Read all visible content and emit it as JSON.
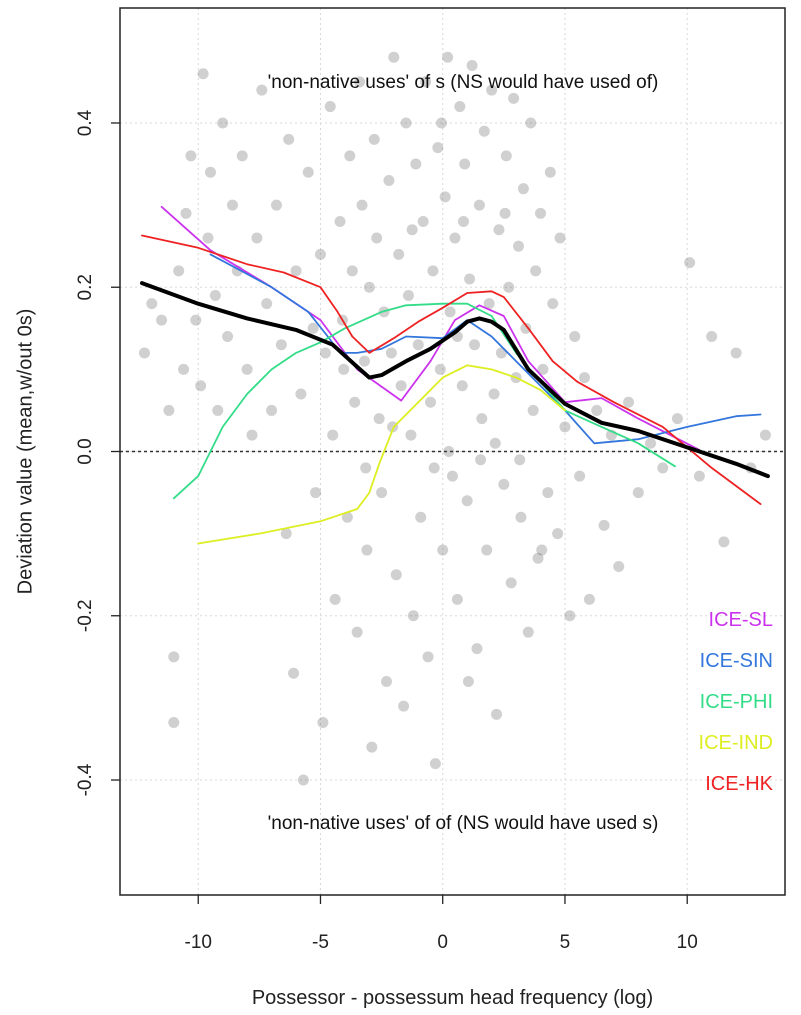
{
  "chart_data": {
    "type": "scatter",
    "xlabel": "Possessor - possessum head frequency (log)",
    "ylabel": "Deviation value (mean,w/out 0s)",
    "xlim": [
      -13.2,
      14.0
    ],
    "ylim": [
      -0.54,
      0.54
    ],
    "xticks": [
      -10,
      -5,
      0,
      5,
      10
    ],
    "xtick_labels": [
      "-10",
      "-5",
      "0",
      "5",
      "10"
    ],
    "yticks": [
      -0.4,
      -0.2,
      0.0,
      0.2,
      0.4
    ],
    "ytick_labels": [
      "-0.4",
      "-0.2",
      "0.0",
      "0.2",
      "0.4"
    ],
    "grid": true,
    "reference_line_y": 0.0,
    "annotations": {
      "top": "'non-native uses' of s (NS would have used of)",
      "bottom": "'non-native uses' of of (NS would have used s)"
    },
    "legend_position": "bottom-right",
    "series": [
      {
        "name": "ICE-SL",
        "color": "#cc33ee",
        "x": [
          -11.5,
          -9.5,
          -7,
          -5,
          -3.5,
          -1.7,
          -0.5,
          0.5,
          1.5,
          2.5,
          3.5,
          5,
          6.5,
          8,
          10.5
        ],
        "y": [
          0.298,
          0.245,
          0.2,
          0.16,
          0.1,
          0.062,
          0.11,
          0.16,
          0.178,
          0.165,
          0.11,
          0.06,
          0.065,
          0.04,
          0.002
        ]
      },
      {
        "name": "ICE-SIN",
        "color": "#3377dd",
        "x": [
          -9.5,
          -7,
          -5.5,
          -4.7,
          -4.2,
          -3.5,
          -2.5,
          -1.5,
          0,
          1,
          2,
          3,
          4,
          5,
          6.2,
          8,
          10,
          12,
          13
        ],
        "y": [
          0.24,
          0.2,
          0.17,
          0.14,
          0.12,
          0.12,
          0.125,
          0.14,
          0.138,
          0.16,
          0.14,
          0.11,
          0.08,
          0.05,
          0.01,
          0.015,
          0.03,
          0.043,
          0.045
        ]
      },
      {
        "name": "ICE-PHI",
        "color": "#33dd88",
        "x": [
          -11,
          -10,
          -9,
          -8,
          -7,
          -6,
          -5,
          -4,
          -2.5,
          -1.5,
          0,
          1,
          2,
          3,
          4,
          5,
          6.5,
          8,
          9.5
        ],
        "y": [
          -0.057,
          -0.03,
          0.03,
          0.07,
          0.1,
          0.12,
          0.133,
          0.15,
          0.17,
          0.178,
          0.18,
          0.18,
          0.165,
          0.12,
          0.085,
          0.05,
          0.03,
          0.01,
          -0.018
        ]
      },
      {
        "name": "ICE-IND",
        "color": "#ddee22",
        "x": [
          -10,
          -7.5,
          -5,
          -3.5,
          -3,
          -2.6,
          -2,
          -1,
          0,
          1,
          2,
          3,
          4,
          5
        ],
        "y": [
          -0.112,
          -0.1,
          -0.085,
          -0.07,
          -0.05,
          -0.015,
          0.03,
          0.06,
          0.09,
          0.105,
          0.1,
          0.09,
          0.075,
          0.05
        ]
      },
      {
        "name": "ICE-HK",
        "color": "#ee2222",
        "x": [
          -12.3,
          -10,
          -8,
          -6.5,
          -5,
          -4.3,
          -3.7,
          -3,
          -2,
          -1,
          0,
          1,
          2,
          2.5,
          3.5,
          4.5,
          5.5,
          7,
          9,
          11,
          13
        ],
        "y": [
          0.263,
          0.248,
          0.228,
          0.218,
          0.2,
          0.17,
          0.14,
          0.12,
          0.138,
          0.158,
          0.175,
          0.193,
          0.195,
          0.188,
          0.15,
          0.11,
          0.085,
          0.06,
          0.03,
          -0.02,
          -0.064
        ]
      },
      {
        "color": "#000000",
        "x": [
          -12.3,
          -10,
          -8,
          -6,
          -4.5,
          -3.5,
          -3,
          -2.5,
          -1.5,
          -0.5,
          0.5,
          1,
          1.5,
          2,
          2.5,
          3.5,
          5,
          6.5,
          8,
          10,
          12,
          13.3
        ],
        "y": [
          0.205,
          0.18,
          0.162,
          0.148,
          0.13,
          0.103,
          0.09,
          0.093,
          0.11,
          0.125,
          0.145,
          0.158,
          0.162,
          0.158,
          0.148,
          0.1,
          0.058,
          0.035,
          0.025,
          0.005,
          -0.015,
          -0.03
        ]
      }
    ],
    "points": [
      [
        -12.2,
        0.12
      ],
      [
        -11.9,
        0.18
      ],
      [
        -11.5,
        0.16
      ],
      [
        -11.2,
        0.05
      ],
      [
        -11.0,
        -0.25
      ],
      [
        -11.0,
        -0.33
      ],
      [
        -10.8,
        0.22
      ],
      [
        -10.6,
        0.1
      ],
      [
        -10.5,
        0.29
      ],
      [
        -10.3,
        0.36
      ],
      [
        -10.1,
        0.16
      ],
      [
        -9.9,
        0.08
      ],
      [
        -9.8,
        0.46
      ],
      [
        -9.6,
        0.26
      ],
      [
        -9.5,
        0.34
      ],
      [
        -9.3,
        0.19
      ],
      [
        -9.2,
        0.05
      ],
      [
        -9.0,
        0.4
      ],
      [
        -8.8,
        0.14
      ],
      [
        -8.6,
        0.3
      ],
      [
        -8.4,
        0.22
      ],
      [
        -8.2,
        0.36
      ],
      [
        -8.0,
        0.1
      ],
      [
        -7.8,
        0.02
      ],
      [
        -7.6,
        0.26
      ],
      [
        -7.4,
        0.44
      ],
      [
        -7.2,
        0.18
      ],
      [
        -7.0,
        0.05
      ],
      [
        -6.8,
        0.3
      ],
      [
        -6.6,
        0.13
      ],
      [
        -6.4,
        -0.1
      ],
      [
        -6.3,
        0.38
      ],
      [
        -6.1,
        -0.27
      ],
      [
        -6.0,
        0.22
      ],
      [
        -5.8,
        0.07
      ],
      [
        -5.7,
        -0.4
      ],
      [
        -5.5,
        0.34
      ],
      [
        -5.3,
        0.15
      ],
      [
        -5.2,
        -0.05
      ],
      [
        -5.0,
        0.24
      ],
      [
        -4.9,
        -0.33
      ],
      [
        -4.8,
        0.12
      ],
      [
        -4.6,
        0.42
      ],
      [
        -4.5,
        0.02
      ],
      [
        -4.4,
        -0.18
      ],
      [
        -4.2,
        0.28
      ],
      [
        -4.1,
        0.16
      ],
      [
        -3.9,
        -0.08
      ],
      [
        -3.8,
        0.36
      ],
      [
        -3.7,
        0.22
      ],
      [
        -3.6,
        0.06
      ],
      [
        -3.5,
        -0.22
      ],
      [
        -3.4,
        0.45
      ],
      [
        -3.3,
        0.3
      ],
      [
        -3.2,
        0.11
      ],
      [
        -3.1,
        -0.12
      ],
      [
        -3.0,
        0.2
      ],
      [
        -2.9,
        -0.36
      ],
      [
        -2.8,
        0.38
      ],
      [
        -2.7,
        0.26
      ],
      [
        -2.6,
        0.04
      ],
      [
        -2.5,
        -0.05
      ],
      [
        -2.4,
        0.17
      ],
      [
        -2.3,
        -0.28
      ],
      [
        -2.2,
        0.33
      ],
      [
        -2.1,
        0.12
      ],
      [
        -2.0,
        0.48
      ],
      [
        -1.9,
        -0.15
      ],
      [
        -1.8,
        0.24
      ],
      [
        -1.7,
        0.08
      ],
      [
        -1.6,
        -0.31
      ],
      [
        -1.5,
        0.4
      ],
      [
        -1.4,
        0.19
      ],
      [
        -1.3,
        0.02
      ],
      [
        -1.2,
        -0.2
      ],
      [
        -1.1,
        0.35
      ],
      [
        -1.0,
        0.13
      ],
      [
        -0.9,
        -0.08
      ],
      [
        -0.8,
        0.28
      ],
      [
        -0.7,
        0.45
      ],
      [
        -0.6,
        -0.25
      ],
      [
        -0.5,
        0.06
      ],
      [
        -0.4,
        0.22
      ],
      [
        -0.3,
        -0.38
      ],
      [
        -0.2,
        0.37
      ],
      [
        -0.1,
        0.1
      ],
      [
        0.0,
        -0.12
      ],
      [
        0.1,
        0.31
      ],
      [
        0.2,
        0.48
      ],
      [
        0.3,
        0.17
      ],
      [
        0.4,
        -0.03
      ],
      [
        0.5,
        0.26
      ],
      [
        0.6,
        -0.18
      ],
      [
        0.7,
        0.42
      ],
      [
        0.8,
        0.08
      ],
      [
        0.9,
        0.35
      ],
      [
        1.0,
        -0.06
      ],
      [
        1.1,
        0.21
      ],
      [
        1.2,
        0.47
      ],
      [
        1.3,
        0.13
      ],
      [
        1.4,
        -0.24
      ],
      [
        1.5,
        0.3
      ],
      [
        1.6,
        0.04
      ],
      [
        1.7,
        0.39
      ],
      [
        1.8,
        -0.12
      ],
      [
        1.9,
        0.18
      ],
      [
        2.0,
        0.44
      ],
      [
        2.1,
        0.07
      ],
      [
        2.2,
        -0.32
      ],
      [
        2.3,
        0.27
      ],
      [
        2.4,
        0.12
      ],
      [
        2.5,
        -0.04
      ],
      [
        2.6,
        0.36
      ],
      [
        2.7,
        0.2
      ],
      [
        2.8,
        -0.16
      ],
      [
        2.9,
        0.43
      ],
      [
        3.0,
        0.09
      ],
      [
        3.1,
        0.25
      ],
      [
        3.2,
        -0.08
      ],
      [
        3.3,
        0.32
      ],
      [
        3.4,
        0.15
      ],
      [
        3.5,
        -0.22
      ],
      [
        3.6,
        0.4
      ],
      [
        3.7,
        0.05
      ],
      [
        3.8,
        0.22
      ],
      [
        3.9,
        -0.13
      ],
      [
        4.0,
        0.29
      ],
      [
        4.1,
        0.1
      ],
      [
        4.3,
        -0.05
      ],
      [
        4.4,
        0.34
      ],
      [
        4.5,
        0.18
      ],
      [
        4.7,
        -0.1
      ],
      [
        4.8,
        0.26
      ],
      [
        5.0,
        0.03
      ],
      [
        5.2,
        -0.2
      ],
      [
        5.4,
        0.14
      ],
      [
        5.6,
        -0.03
      ],
      [
        5.8,
        0.09
      ],
      [
        6.0,
        -0.18
      ],
      [
        6.3,
        0.05
      ],
      [
        6.6,
        -0.09
      ],
      [
        6.9,
        0.02
      ],
      [
        7.2,
        -0.14
      ],
      [
        7.6,
        0.06
      ],
      [
        8.0,
        -0.05
      ],
      [
        8.5,
        0.01
      ],
      [
        9.0,
        -0.02
      ],
      [
        9.6,
        0.04
      ],
      [
        10.1,
        0.23
      ],
      [
        10.5,
        -0.03
      ],
      [
        11.0,
        0.14
      ],
      [
        11.5,
        -0.11
      ],
      [
        12.0,
        0.12
      ],
      [
        12.6,
        -0.02
      ],
      [
        13.2,
        0.02
      ],
      [
        -2.05,
        0.03
      ],
      [
        0.25,
        0.0
      ],
      [
        1.55,
        -0.01
      ],
      [
        -0.35,
        -0.02
      ],
      [
        2.15,
        0.01
      ],
      [
        -1.25,
        0.27
      ],
      [
        0.85,
        0.28
      ],
      [
        2.55,
        0.29
      ],
      [
        -3.15,
        -0.02
      ],
      [
        3.15,
        -0.01
      ],
      [
        -0.05,
        0.4
      ],
      [
        1.05,
        -0.28
      ],
      [
        -4.05,
        0.1
      ],
      [
        4.05,
        -0.12
      ],
      [
        0.6,
        0.14
      ]
    ]
  }
}
